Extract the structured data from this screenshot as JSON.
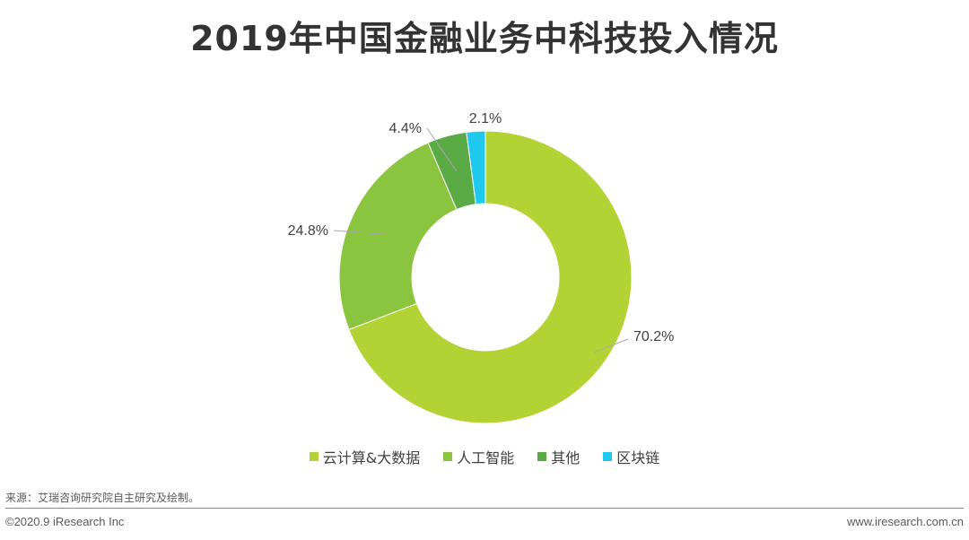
{
  "chart_data": {
    "type": "pie",
    "donut": true,
    "title": "2019年中国金融业务中科技投入情况",
    "categories": [
      "云计算&大数据",
      "人工智能",
      "其他",
      "区块链"
    ],
    "values": [
      70.2,
      24.8,
      4.4,
      2.1
    ],
    "value_labels": [
      "70.2%",
      "24.8%",
      "4.4%",
      "2.1%"
    ],
    "colors": [
      "#b3d234",
      "#8bc53f",
      "#5aaa46",
      "#1ec8ef"
    ],
    "legend_position": "bottom"
  },
  "source_note": "来源：艾瑞咨询研究院自主研究及绘制。",
  "footer": {
    "copyright": "©2020.9 iResearch Inc",
    "website": "www.iresearch.com.cn"
  }
}
